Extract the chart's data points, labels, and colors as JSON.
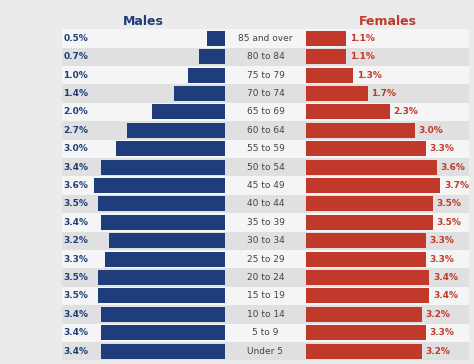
{
  "age_groups": [
    "85 and over",
    "80 to 84",
    "75 to 79",
    "70 to 74",
    "65 to 69",
    "60 to 64",
    "55 to 59",
    "50 to 54",
    "45 to 49",
    "40 to 44",
    "35 to 39",
    "30 to 34",
    "25 to 29",
    "20 to 24",
    "15 to 19",
    "10 to 14",
    "5 to 9",
    "Under 5"
  ],
  "males": [
    0.5,
    0.7,
    1.0,
    1.4,
    2.0,
    2.7,
    3.0,
    3.4,
    3.6,
    3.5,
    3.4,
    3.2,
    3.3,
    3.5,
    3.5,
    3.4,
    3.4,
    3.4
  ],
  "females": [
    1.1,
    1.1,
    1.3,
    1.7,
    2.3,
    3.0,
    3.3,
    3.6,
    3.7,
    3.5,
    3.5,
    3.3,
    3.3,
    3.4,
    3.4,
    3.2,
    3.3,
    3.2
  ],
  "male_color": "#1f3d7a",
  "female_color": "#c0392b",
  "male_label_color": "#1f3d7a",
  "female_label_color": "#c0392b",
  "category_text_color": "#444444",
  "bg_color": "#ebebeb",
  "row_color_even": "#f5f5f5",
  "row_color_odd": "#e0e0e0",
  "title_males": "Males",
  "title_females": "Females",
  "xlim": 4.5,
  "bar_height": 0.82,
  "label_fontsize": 6.5,
  "title_fontsize": 9,
  "category_fontsize": 6.5
}
